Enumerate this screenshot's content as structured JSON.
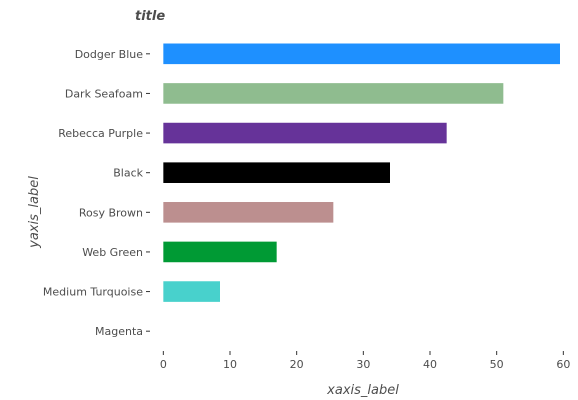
{
  "chart_data": {
    "type": "bar",
    "orientation": "horizontal",
    "title": "title",
    "xlabel": "xaxis_label",
    "ylabel": "yaxis_label",
    "xlim": [
      -2,
      61
    ],
    "x_ticks": [
      0,
      10,
      20,
      30,
      40,
      50,
      60
    ],
    "categories": [
      "Magenta",
      "Medium Turquoise",
      "Web Green",
      "Rosy Brown",
      "Black",
      "Rebecca Purple",
      "Dark Seafoam",
      "Dodger Blue"
    ],
    "values": [
      0,
      8.5,
      17,
      25.5,
      34,
      42.5,
      51,
      59.5
    ],
    "colors": [
      "#ff00ff",
      "#48d1cc",
      "#009a34",
      "#bc8f8f",
      "#000000",
      "#663399",
      "#8fbc8f",
      "#1e90ff"
    ],
    "grid": false,
    "legend": "none"
  }
}
